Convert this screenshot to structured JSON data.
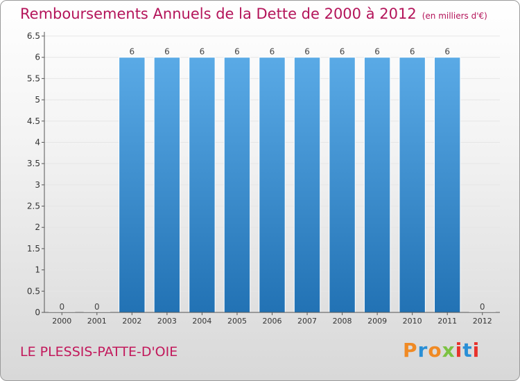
{
  "title": "Remboursements Annuels de la Dette de 2000 à 2012",
  "unit_note": "(en milliers d'€)",
  "commune": "LE PLESSIS-PATTE-D'OIE",
  "logo": {
    "text": "Proxiti",
    "colors": [
      "#f08a24",
      "#2a8fd6",
      "#f08a24",
      "#7cc242",
      "#e8322c",
      "#2a8fd6",
      "#e8322c"
    ]
  },
  "colors": {
    "title": "#b4145a",
    "bar_top": "#5aaae6",
    "bar_bottom": "#2272b4",
    "axis": "#555555",
    "grid": "#e6e6e6"
  },
  "chart_data": {
    "type": "bar",
    "title": "Remboursements Annuels de la Dette de 2000 à 2012",
    "categories": [
      "2000",
      "2001",
      "2002",
      "2003",
      "2004",
      "2005",
      "2006",
      "2007",
      "2008",
      "2009",
      "2010",
      "2011",
      "2012"
    ],
    "values": [
      0,
      0,
      6,
      6,
      6,
      6,
      6,
      6,
      6,
      6,
      6,
      6,
      0
    ],
    "data_labels": [
      "0",
      "0",
      "6",
      "6",
      "6",
      "6",
      "6",
      "6",
      "6",
      "6",
      "6",
      "6",
      "0"
    ],
    "ylim": [
      0,
      6.5
    ],
    "y_ticks": [
      "0",
      "0.5",
      "1",
      "1.5",
      "2",
      "2.5",
      "3",
      "3.5",
      "4",
      "4.5",
      "5",
      "5.5",
      "6",
      "6.5"
    ],
    "y_tick_values": [
      0,
      0.5,
      1,
      1.5,
      2,
      2.5,
      3,
      3.5,
      4,
      4.5,
      5,
      5.5,
      6,
      6.5
    ],
    "grid": true,
    "legend": "none"
  }
}
